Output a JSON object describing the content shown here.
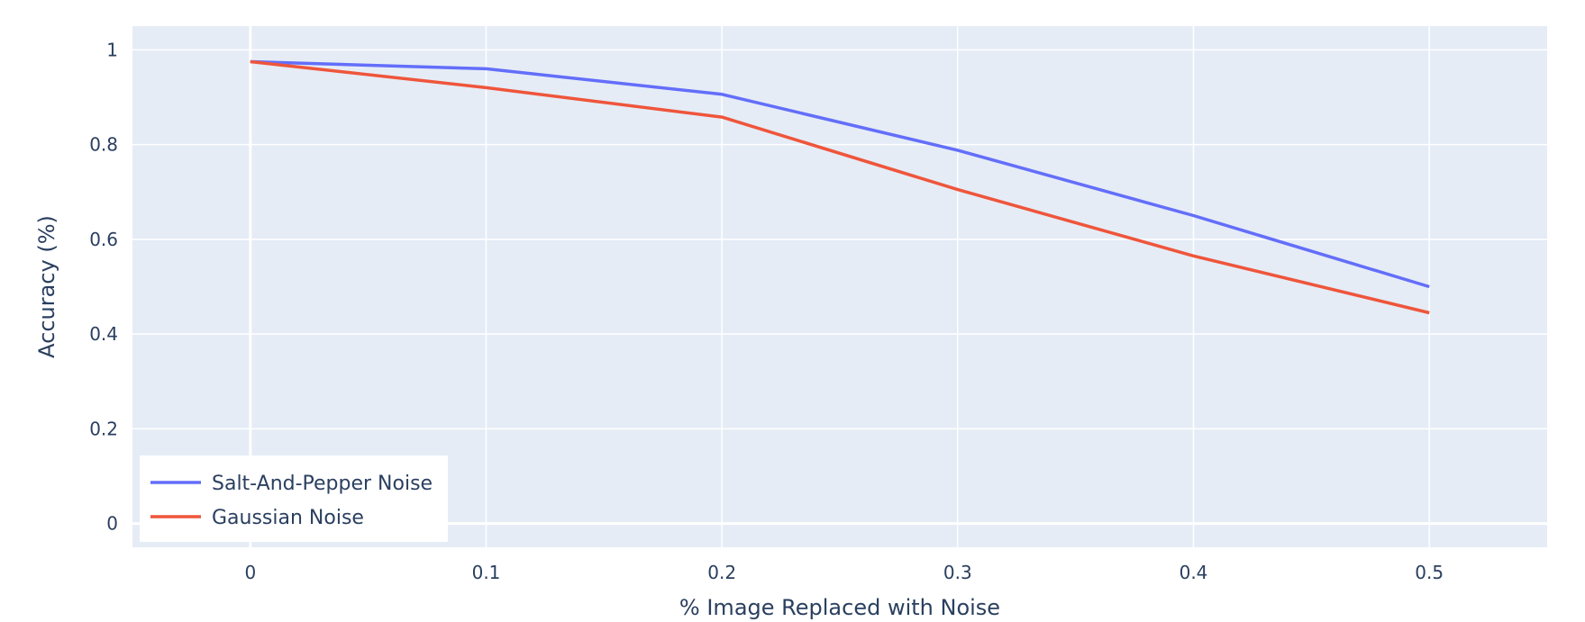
{
  "chart_data": {
    "type": "line",
    "xlabel": "% Image Replaced with Noise",
    "ylabel": "Accuracy (%)",
    "xlim": [
      -0.05,
      0.55
    ],
    "ylim": [
      -0.05,
      1.05
    ],
    "x_ticks": [
      0,
      0.1,
      0.2,
      0.3,
      0.4,
      0.5
    ],
    "x_tick_labels": [
      "0",
      "0.1",
      "0.2",
      "0.3",
      "0.4",
      "0.5"
    ],
    "y_ticks": [
      0,
      0.2,
      0.4,
      0.6,
      0.8,
      1
    ],
    "y_tick_labels": [
      "0",
      "0.2",
      "0.4",
      "0.6",
      "0.8",
      "1"
    ],
    "grid": true,
    "legend_position": "bottom-left",
    "x": [
      0,
      0.1,
      0.2,
      0.3,
      0.4,
      0.5
    ],
    "series": [
      {
        "name": "Salt-And-Pepper Noise",
        "color": "#636efa",
        "values": [
          0.975,
          0.96,
          0.906,
          0.788,
          0.65,
          0.5
        ]
      },
      {
        "name": "Gaussian Noise",
        "color": "#ef553b",
        "values": [
          0.975,
          0.92,
          0.858,
          0.705,
          0.565,
          0.445
        ]
      }
    ],
    "plot_bgcolor": "#e5ecf6",
    "grid_color": "#ffffff",
    "text_color": "#2a3f5f"
  }
}
